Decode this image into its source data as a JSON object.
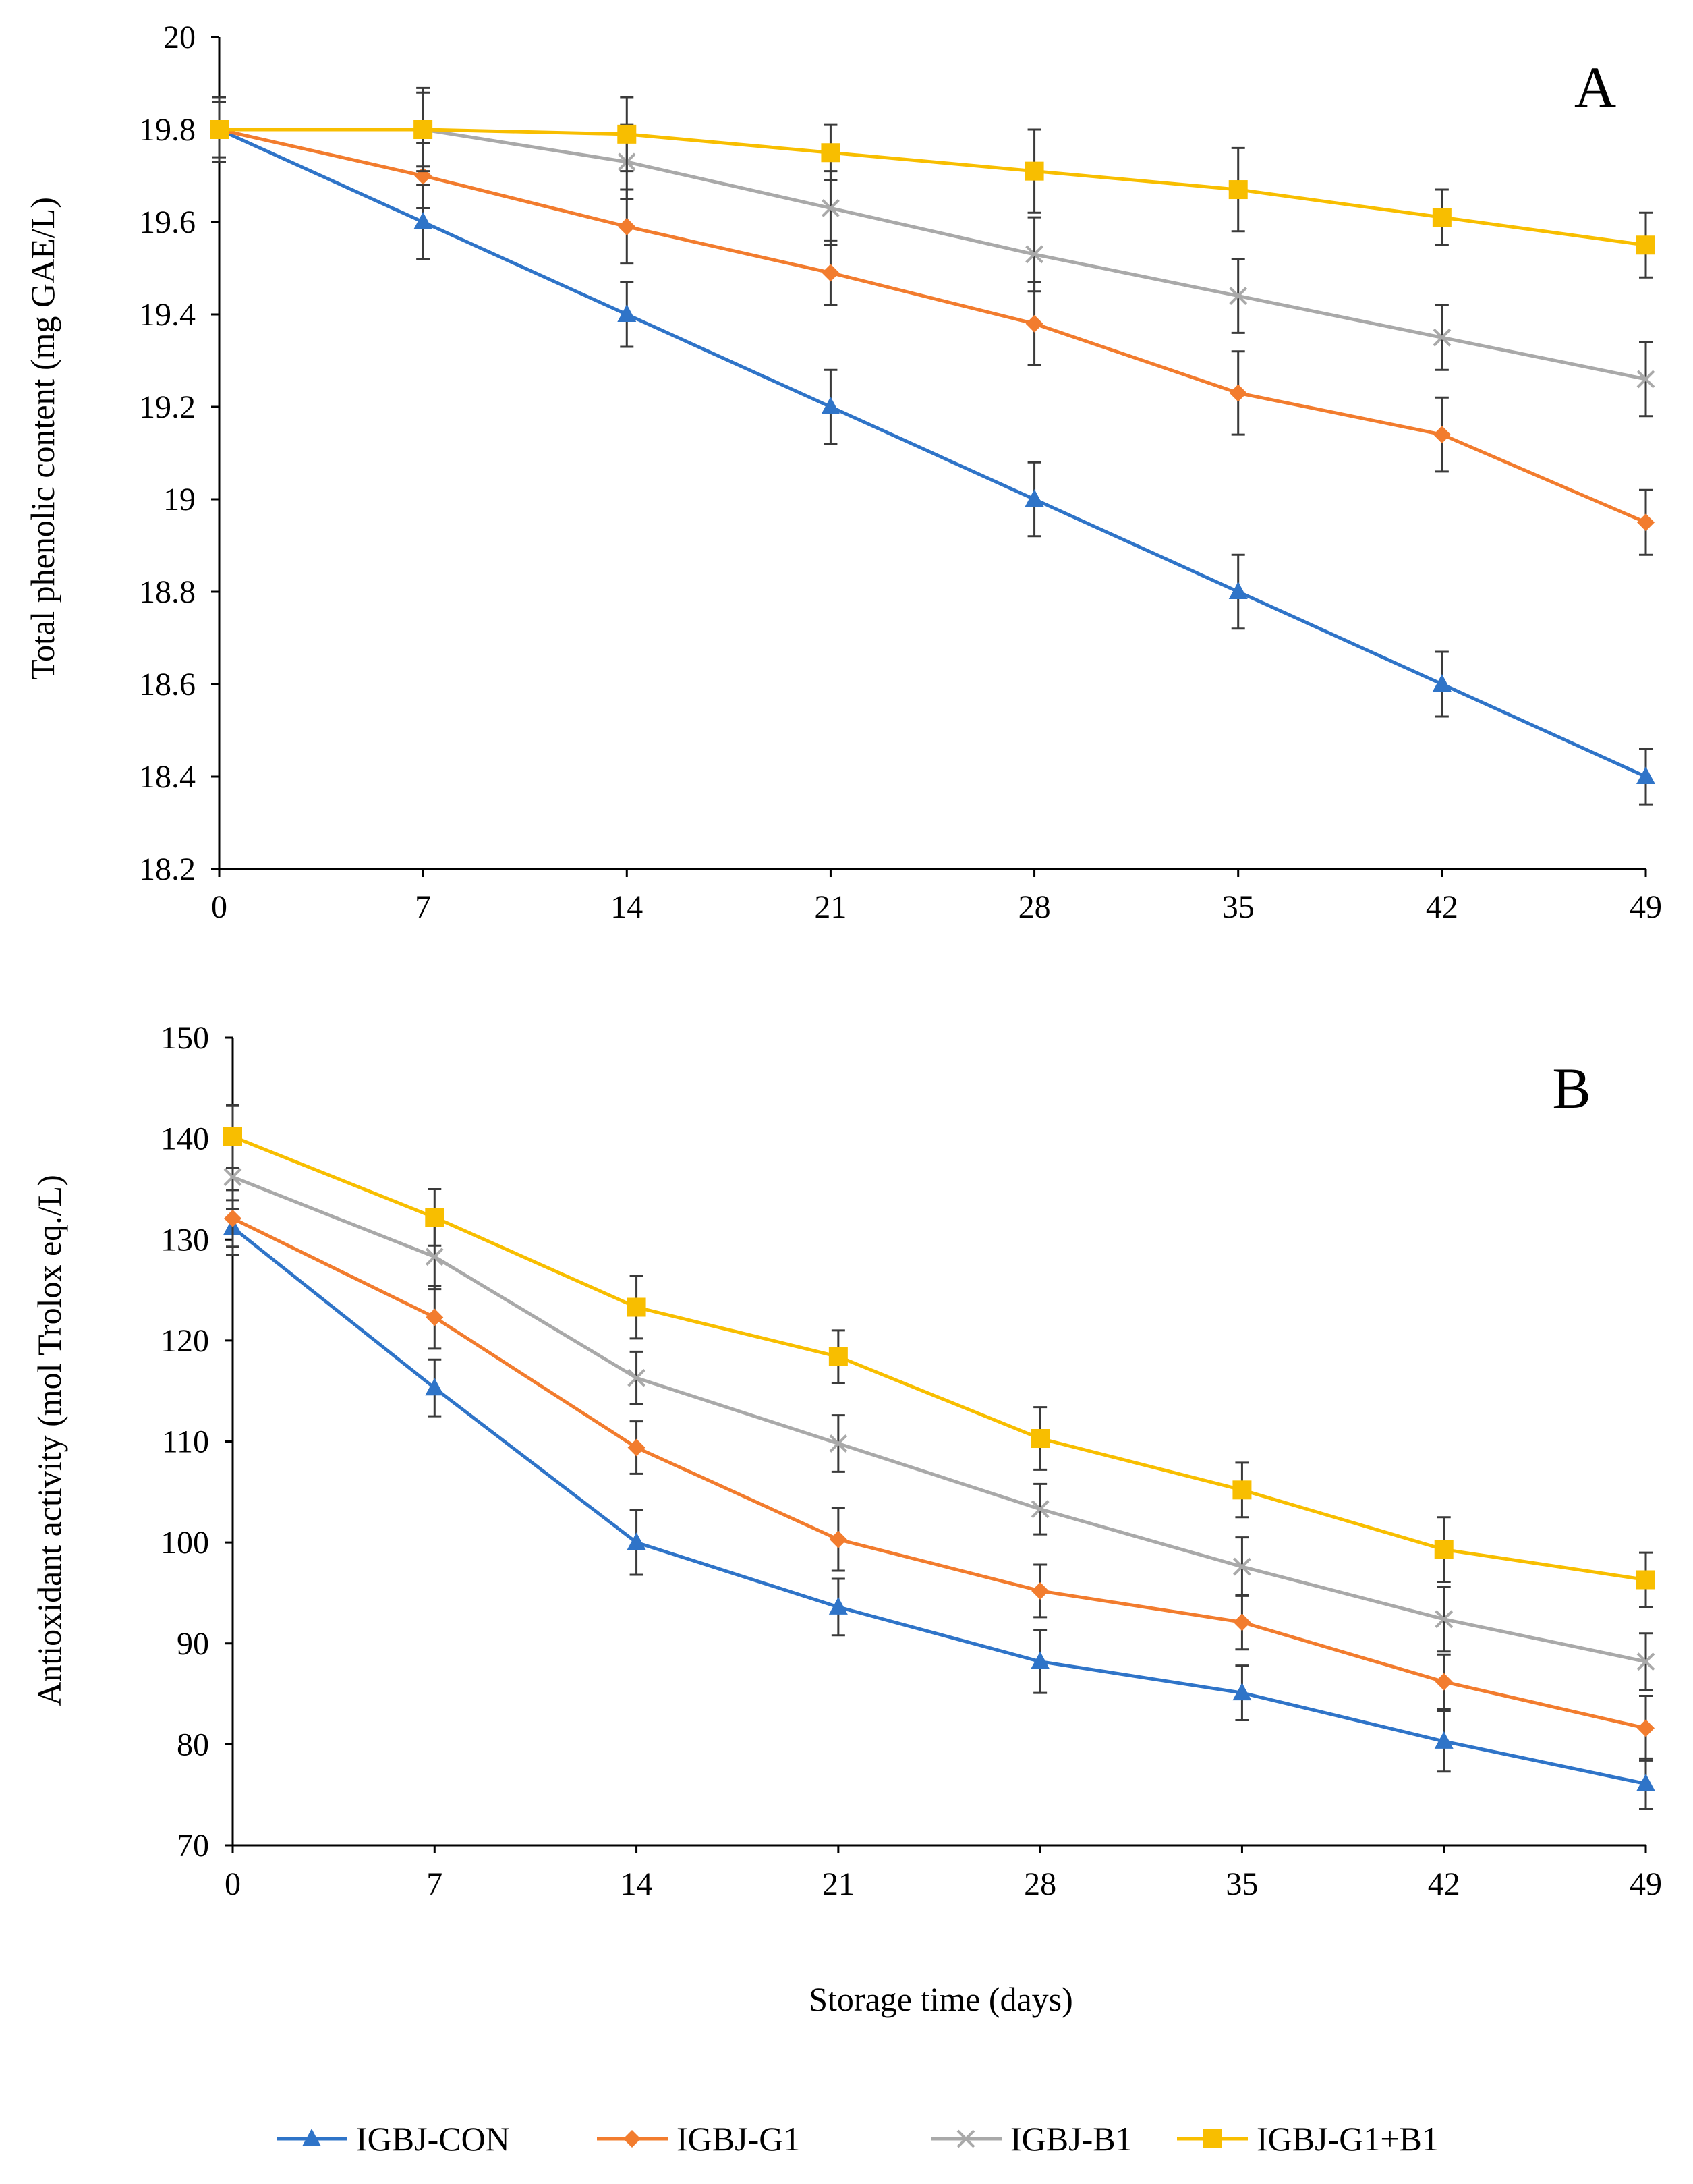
{
  "colors": {
    "IGBJ-CON": "#2F74C8",
    "IGBJ-G1": "#F27C2E",
    "IGBJ-B1": "#A9A9A9",
    "IGBJ-G1+B1": "#F8BE00",
    "error_bar": "#3a3a3a",
    "axis": "#000000"
  },
  "markers": {
    "IGBJ-CON": "triangle",
    "IGBJ-G1": "diamond",
    "IGBJ-B1": "cross",
    "IGBJ-G1+B1": "square"
  },
  "legend": {
    "items": [
      "IGBJ-CON",
      "IGBJ-G1",
      "IGBJ-B1",
      "IGBJ-G1+B1"
    ]
  },
  "shared_xlabel": "Storage time (days)",
  "chart_data": [
    {
      "type": "line",
      "panel": "A",
      "ylabel": "Total phenolic content (mg GAE/L)",
      "xlabel": "",
      "x": [
        0,
        7,
        14,
        21,
        28,
        35,
        42,
        49
      ],
      "x_tick_labels": [
        "0",
        "7",
        "14",
        "21",
        "28",
        "35",
        "42",
        "49"
      ],
      "ylim": [
        18.2,
        20
      ],
      "y_ticks": [
        18.2,
        18.4,
        18.6,
        18.8,
        19,
        19.2,
        19.4,
        19.6,
        19.8,
        20
      ],
      "y_tick_labels": [
        "18.2",
        "18.4",
        "18.6",
        "18.8",
        "19",
        "19.2",
        "19.4",
        "19.6",
        "19.8",
        "20"
      ],
      "grid": false,
      "error_bars": true,
      "series": [
        {
          "name": "IGBJ-CON",
          "values": [
            19.8,
            19.6,
            19.4,
            19.2,
            19.0,
            18.8,
            18.6,
            18.4
          ],
          "errors": [
            0.07,
            0.08,
            0.07,
            0.08,
            0.08,
            0.08,
            0.07,
            0.06
          ]
        },
        {
          "name": "IGBJ-G1",
          "values": [
            19.8,
            19.7,
            19.59,
            19.49,
            19.38,
            19.23,
            19.14,
            18.95
          ],
          "errors": [
            0.07,
            0.07,
            0.08,
            0.07,
            0.09,
            0.09,
            0.08,
            0.07
          ]
        },
        {
          "name": "IGBJ-B1",
          "values": [
            19.8,
            19.8,
            19.73,
            19.63,
            19.53,
            19.44,
            19.35,
            19.26
          ],
          "errors": [
            0.07,
            0.08,
            0.08,
            0.08,
            0.08,
            0.08,
            0.07,
            0.08
          ]
        },
        {
          "name": "IGBJ-G1+B1",
          "values": [
            19.8,
            19.8,
            19.79,
            19.75,
            19.71,
            19.67,
            19.61,
            19.55
          ],
          "errors": [
            0.06,
            0.09,
            0.08,
            0.06,
            0.09,
            0.09,
            0.06,
            0.07
          ]
        }
      ]
    },
    {
      "type": "line",
      "panel": "B",
      "ylabel": "Antioxidant activity (mol Trolox eq./L)",
      "xlabel": "Storage time (days)",
      "x": [
        0,
        7,
        14,
        21,
        28,
        35,
        42,
        49
      ],
      "x_tick_labels": [
        "0",
        "7",
        "14",
        "21",
        "28",
        "35",
        "42",
        "49"
      ],
      "ylim": [
        70,
        150
      ],
      "y_ticks": [
        70,
        80,
        90,
        100,
        110,
        120,
        130,
        140,
        150
      ],
      "y_tick_labels": [
        "70",
        "80",
        "90",
        "100",
        "110",
        "120",
        "130",
        "140",
        "150"
      ],
      "grid": false,
      "error_bars": true,
      "series": [
        {
          "name": "IGBJ-CON",
          "values": [
            131.2,
            115.3,
            100.0,
            93.6,
            88.2,
            85.1,
            80.3,
            76.1
          ],
          "errors": [
            2.7,
            2.8,
            3.2,
            2.8,
            3.1,
            2.7,
            3.0,
            2.5
          ]
        },
        {
          "name": "IGBJ-G1",
          "values": [
            132.1,
            122.3,
            109.4,
            100.3,
            95.2,
            92.1,
            86.2,
            81.6
          ],
          "errors": [
            2.8,
            3.1,
            2.6,
            3.1,
            2.6,
            2.7,
            2.7,
            3.2
          ]
        },
        {
          "name": "IGBJ-B1",
          "values": [
            136.2,
            128.3,
            116.3,
            109.8,
            103.3,
            97.6,
            92.4,
            88.2
          ],
          "errors": [
            3.2,
            3.2,
            2.6,
            2.8,
            2.5,
            2.9,
            3.2,
            2.8
          ]
        },
        {
          "name": "IGBJ-G1+B1",
          "values": [
            140.2,
            132.2,
            123.3,
            118.4,
            110.3,
            105.2,
            99.3,
            96.3
          ],
          "errors": [
            3.1,
            2.8,
            3.1,
            2.6,
            3.1,
            2.7,
            3.2,
            2.7
          ]
        }
      ]
    }
  ]
}
